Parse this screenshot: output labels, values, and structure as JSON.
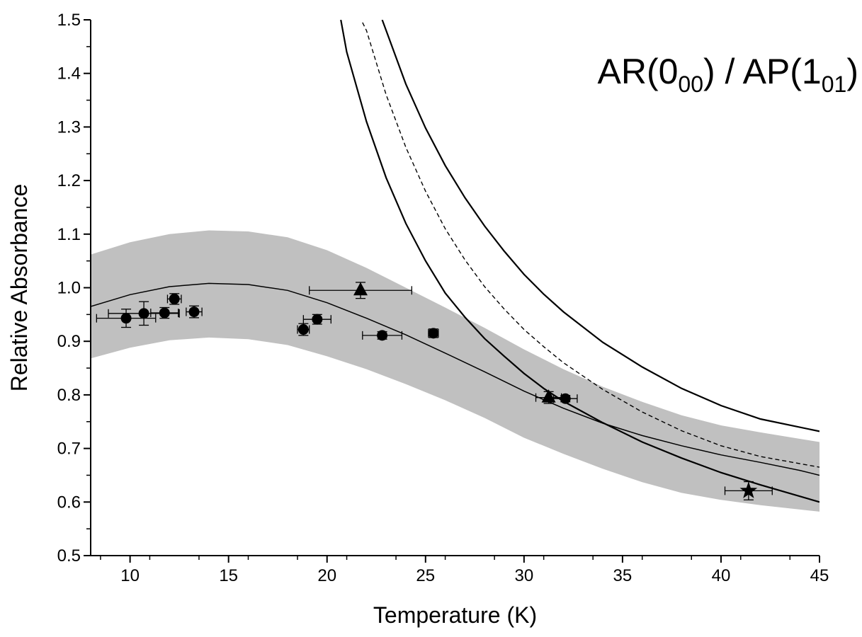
{
  "chart_data": {
    "type": "scatter",
    "title": "",
    "xlabel": "Temperature (K)",
    "ylabel": "Relative Absorbance",
    "xlim": [
      8,
      45
    ],
    "ylim": [
      0.5,
      1.5
    ],
    "x_ticks": [
      10,
      15,
      20,
      25,
      30,
      35,
      40,
      45
    ],
    "y_ticks": [
      0.5,
      0.6,
      0.7,
      0.8,
      0.9,
      1.0,
      1.1,
      1.2,
      1.3,
      1.4,
      1.5
    ],
    "x_tick_labels": [
      "10",
      "15",
      "20",
      "25",
      "30",
      "35",
      "40",
      "45"
    ],
    "y_tick_labels": [
      "0.5",
      "0.6",
      "0.7",
      "0.8",
      "0.9",
      "1.0",
      "1.1",
      "1.2",
      "1.3",
      "1.4",
      "1.5"
    ],
    "grid": false,
    "annotation": {
      "parts": [
        {
          "text": "AR(0",
          "sub": false
        },
        {
          "text": "00",
          "sub": true
        },
        {
          "text": ") / AP(1",
          "sub": false
        },
        {
          "text": "01",
          "sub": true
        },
        {
          "text": ")",
          "sub": false
        }
      ]
    },
    "band": {
      "x": [
        8.0,
        10.0,
        12.0,
        14.0,
        16.0,
        18.0,
        20.0,
        22.0,
        24.0,
        26.0,
        28.0,
        30.0,
        32.0,
        34.0,
        36.0,
        38.0,
        40.0,
        42.0,
        44.0,
        45.0
      ],
      "upper": [
        1.062,
        1.085,
        1.1,
        1.107,
        1.105,
        1.094,
        1.07,
        1.037,
        1.0,
        0.963,
        0.925,
        0.885,
        0.848,
        0.815,
        0.787,
        0.762,
        0.743,
        0.73,
        0.718,
        0.712
      ],
      "lower": [
        0.868,
        0.888,
        0.902,
        0.907,
        0.904,
        0.893,
        0.872,
        0.848,
        0.82,
        0.79,
        0.757,
        0.72,
        0.69,
        0.662,
        0.637,
        0.617,
        0.604,
        0.594,
        0.586,
        0.582
      ]
    },
    "fit_line": {
      "x": [
        8.0,
        10.0,
        12.0,
        14.0,
        16.0,
        18.0,
        20.0,
        22.0,
        24.0,
        26.0,
        28.0,
        30.0,
        32.0,
        34.0,
        36.0,
        38.0,
        40.0,
        42.0,
        44.0,
        45.0
      ],
      "y": [
        0.965,
        0.987,
        1.002,
        1.008,
        1.006,
        0.995,
        0.972,
        0.943,
        0.912,
        0.878,
        0.843,
        0.807,
        0.775,
        0.747,
        0.724,
        0.705,
        0.688,
        0.674,
        0.659,
        0.65
      ]
    },
    "curves": [
      {
        "style": "solid",
        "x": [
          20.7,
          21.0,
          22.0,
          23.0,
          24.0,
          25.0,
          26.0,
          27.0,
          28.0,
          29.0,
          30.0,
          31.0,
          32.0,
          34.0,
          36.0,
          38.0,
          40.0,
          42.0,
          45.0
        ],
        "y": [
          1.5,
          1.44,
          1.31,
          1.205,
          1.12,
          1.05,
          0.99,
          0.945,
          0.905,
          0.872,
          0.84,
          0.812,
          0.788,
          0.748,
          0.712,
          0.682,
          0.655,
          0.632,
          0.6
        ]
      },
      {
        "style": "dashed",
        "x": [
          21.8,
          22.0,
          23.0,
          24.0,
          25.0,
          26.0,
          27.0,
          28.0,
          29.0,
          30.0,
          31.0,
          32.0,
          34.0,
          36.0,
          38.0,
          40.0,
          42.0,
          45.0
        ],
        "y": [
          1.495,
          1.48,
          1.36,
          1.262,
          1.18,
          1.11,
          1.052,
          1.002,
          0.96,
          0.922,
          0.89,
          0.86,
          0.81,
          0.768,
          0.733,
          0.705,
          0.685,
          0.665
        ]
      },
      {
        "style": "solid",
        "x": [
          22.8,
          23.0,
          24.0,
          25.0,
          26.0,
          27.0,
          28.0,
          29.0,
          30.0,
          31.0,
          32.0,
          34.0,
          36.0,
          38.0,
          40.0,
          42.0,
          45.0
        ],
        "y": [
          1.5,
          1.48,
          1.38,
          1.298,
          1.228,
          1.168,
          1.115,
          1.068,
          1.025,
          0.988,
          0.955,
          0.898,
          0.852,
          0.812,
          0.78,
          0.755,
          0.732
        ]
      }
    ],
    "points": [
      {
        "marker": "circle",
        "x": 9.8,
        "y": 0.943,
        "xerr": 1.5,
        "yerr": 0.017
      },
      {
        "marker": "circle",
        "x": 10.7,
        "y": 0.952,
        "xerr": 1.8,
        "yerr": 0.022
      },
      {
        "marker": "circle",
        "x": 11.75,
        "y": 0.953,
        "xerr": 0.7,
        "yerr": 0.01
      },
      {
        "marker": "circle",
        "x": 12.25,
        "y": 0.979,
        "xerr": 0.35,
        "yerr": 0.01
      },
      {
        "marker": "circle",
        "x": 13.25,
        "y": 0.955,
        "xerr": 0.4,
        "yerr": 0.011
      },
      {
        "marker": "circle",
        "x": 18.8,
        "y": 0.922,
        "xerr": 0.3,
        "yerr": 0.011
      },
      {
        "marker": "circle",
        "x": 19.5,
        "y": 0.941,
        "xerr": 0.7,
        "yerr": 0.009
      },
      {
        "marker": "circle",
        "x": 22.8,
        "y": 0.911,
        "xerr": 1.0,
        "yerr": 0.007
      },
      {
        "marker": "circle",
        "x": 25.4,
        "y": 0.915,
        "xerr": 0.25,
        "yerr": 0.008
      },
      {
        "marker": "circle",
        "x": 32.1,
        "y": 0.793,
        "xerr": 0.6,
        "yerr": 0.006
      },
      {
        "marker": "triangle",
        "x": 21.7,
        "y": 0.995,
        "xerr": 2.6,
        "yerr": 0.015
      },
      {
        "marker": "triangle",
        "x": 31.25,
        "y": 0.795,
        "xerr": 0.65,
        "yerr": 0.011
      },
      {
        "marker": "star",
        "x": 41.4,
        "y": 0.621,
        "xerr": 1.2,
        "yerr": 0.017
      }
    ]
  }
}
